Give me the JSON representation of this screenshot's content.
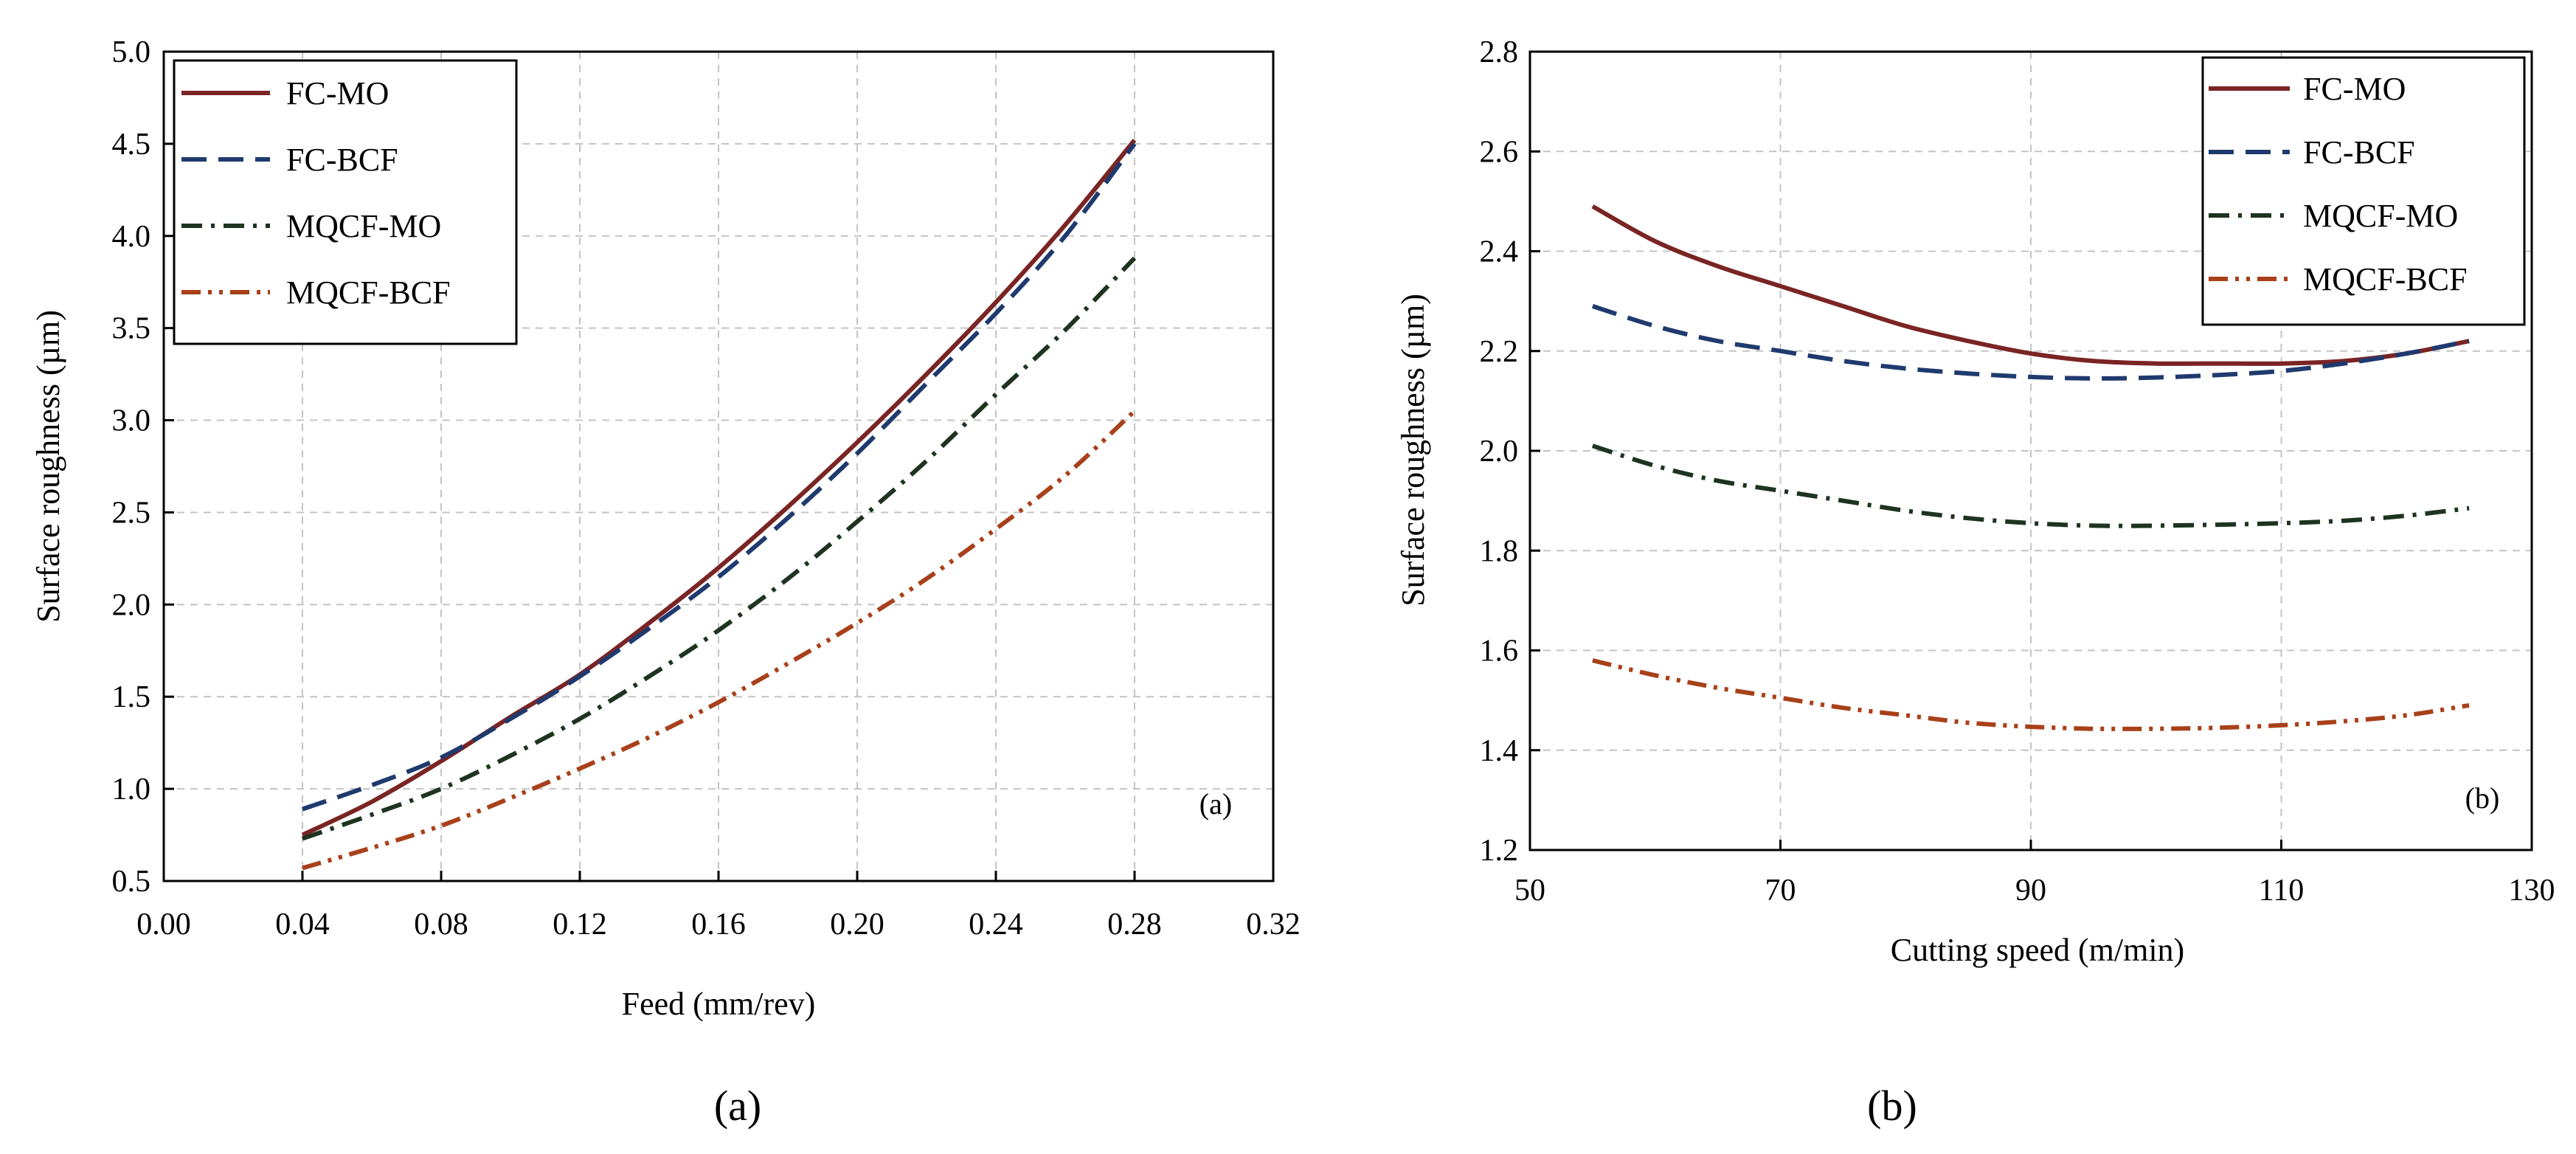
{
  "chart_data": [
    {
      "type": "line",
      "panel_label": "(a)",
      "caption": "(a)",
      "xlabel": "Feed (mm/rev)",
      "ylabel": "Surface roughness (µm)",
      "xlim": [
        0.0,
        0.32
      ],
      "ylim": [
        0.5,
        5.0
      ],
      "x_ticks": [
        0.0,
        0.04,
        0.08,
        0.12,
        0.16,
        0.2,
        0.24,
        0.28,
        0.32
      ],
      "x_tick_labels": [
        "0.00",
        "0.04",
        "0.08",
        "0.12",
        "0.16",
        "0.20",
        "0.24",
        "0.28",
        "0.32"
      ],
      "y_ticks": [
        0.5,
        1.0,
        1.5,
        2.0,
        2.5,
        3.0,
        3.5,
        4.0,
        4.5,
        5.0
      ],
      "y_tick_labels": [
        "0.5",
        "1.0",
        "1.5",
        "2.0",
        "2.5",
        "3.0",
        "3.5",
        "4.0",
        "4.5",
        "5.0"
      ],
      "grid": true,
      "legend_position": "top-left",
      "x": [
        0.04,
        0.06,
        0.08,
        0.1,
        0.12,
        0.14,
        0.16,
        0.18,
        0.2,
        0.22,
        0.24,
        0.26,
        0.28
      ],
      "series": [
        {
          "name": "FC-MO",
          "color": "#7a2424",
          "dash": "solid",
          "values": [
            0.75,
            0.93,
            1.15,
            1.39,
            1.62,
            1.9,
            2.2,
            2.53,
            2.88,
            3.25,
            3.64,
            4.06,
            4.52
          ]
        },
        {
          "name": "FC-BCF",
          "color": "#1f3a6e",
          "dash": "dash",
          "values": [
            0.89,
            1.02,
            1.17,
            1.38,
            1.61,
            1.87,
            2.15,
            2.47,
            2.82,
            3.2,
            3.58,
            4.0,
            4.5
          ]
        },
        {
          "name": "MQCF-MO",
          "color": "#1e3320",
          "dash": "dashdot",
          "values": [
            0.73,
            0.86,
            1.0,
            1.18,
            1.38,
            1.61,
            1.86,
            2.14,
            2.45,
            2.78,
            3.14,
            3.49,
            3.88
          ]
        },
        {
          "name": "MQCF-BCF",
          "color": "#a8401a",
          "dash": "dashdotdot",
          "values": [
            0.57,
            0.68,
            0.8,
            0.95,
            1.11,
            1.28,
            1.47,
            1.68,
            1.9,
            2.14,
            2.41,
            2.7,
            3.05
          ]
        }
      ]
    },
    {
      "type": "line",
      "panel_label": "(b)",
      "caption": "(b)",
      "xlabel": "Cutting speed (m/min)",
      "ylabel": "Surface roughness (µm)",
      "xlim": [
        50,
        130
      ],
      "ylim": [
        1.2,
        2.8
      ],
      "x_ticks": [
        50,
        70,
        90,
        110,
        130
      ],
      "x_tick_labels": [
        "50",
        "70",
        "90",
        "110",
        "130"
      ],
      "y_ticks": [
        1.2,
        1.4,
        1.6,
        1.8,
        2.0,
        2.2,
        2.4,
        2.6,
        2.8
      ],
      "y_tick_labels": [
        "1.2",
        "1.4",
        "1.6",
        "1.8",
        "2.0",
        "2.2",
        "2.4",
        "2.6",
        "2.8"
      ],
      "grid": true,
      "legend_position": "top-right",
      "x": [
        55,
        60,
        65,
        70,
        75,
        80,
        85,
        90,
        95,
        100,
        105,
        110,
        115,
        120,
        125
      ],
      "series": [
        {
          "name": "FC-MO",
          "color": "#7a2424",
          "dash": "solid",
          "values": [
            2.49,
            2.42,
            2.37,
            2.33,
            2.29,
            2.25,
            2.22,
            2.195,
            2.18,
            2.175,
            2.175,
            2.175,
            2.18,
            2.195,
            2.22
          ]
        },
        {
          "name": "FC-BCF",
          "color": "#1f3a6e",
          "dash": "dash",
          "values": [
            2.29,
            2.25,
            2.22,
            2.2,
            2.18,
            2.165,
            2.155,
            2.148,
            2.145,
            2.147,
            2.152,
            2.16,
            2.175,
            2.195,
            2.22
          ]
        },
        {
          "name": "MQCF-MO",
          "color": "#1e3320",
          "dash": "dashdot",
          "values": [
            2.01,
            1.97,
            1.94,
            1.92,
            1.9,
            1.88,
            1.865,
            1.855,
            1.85,
            1.85,
            1.852,
            1.855,
            1.86,
            1.87,
            1.885
          ]
        },
        {
          "name": "MQCF-BCF",
          "color": "#a8401a",
          "dash": "dashdotdot",
          "values": [
            1.58,
            1.55,
            1.525,
            1.505,
            1.485,
            1.47,
            1.455,
            1.447,
            1.443,
            1.443,
            1.445,
            1.45,
            1.458,
            1.47,
            1.49
          ]
        }
      ]
    }
  ]
}
